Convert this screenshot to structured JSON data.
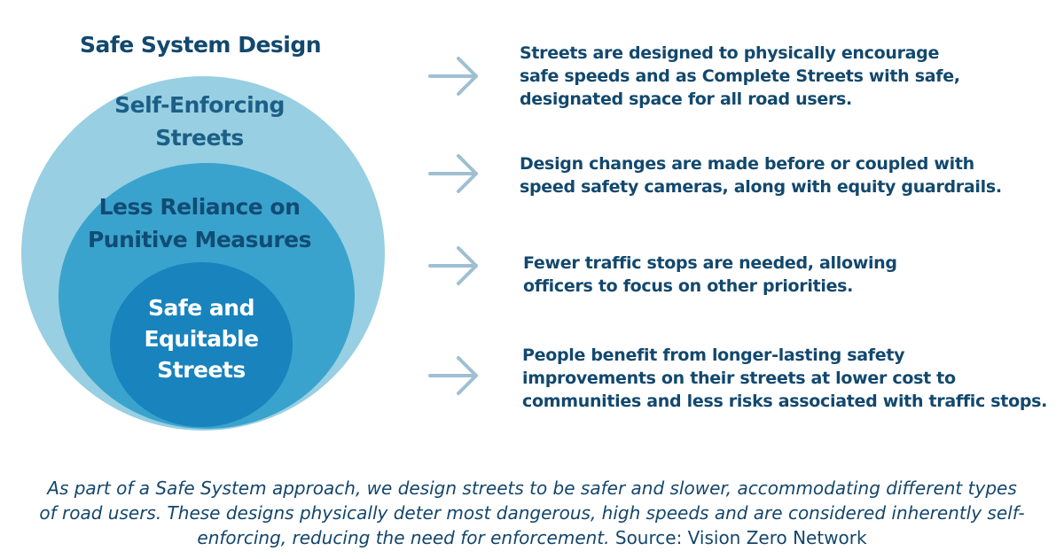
{
  "title": "Safe System Design",
  "circles": {
    "outer": [
      "Self-Enforcing",
      "Streets"
    ],
    "middle": [
      "Less Reliance on",
      "Punitive Measures"
    ],
    "inner": [
      "Safe and",
      "Equitable",
      "Streets"
    ]
  },
  "descriptions": [
    [
      "Streets are designed to physically encourage",
      "safe speeds and as Complete Streets with safe,",
      "designated space for all road users."
    ],
    [
      "Design changes are made before or coupled with",
      "speed safety cameras, along with equity guardrails."
    ],
    [
      "Fewer traffic stops are needed, allowing",
      "officers to focus on other priorities."
    ],
    [
      "People benefit from longer-lasting safety",
      "improvements on their streets at lower cost to",
      "communities and less risks associated with traffic stops."
    ]
  ],
  "caption": {
    "lines": [
      "As part of a Safe System approach, we design streets to be safer and slower, accommodating different types",
      "of road users. These designs physically deter most dangerous, high speeds and are considered inherently self-",
      "enforcing, reducing the need for enforcement."
    ],
    "source": "Source: Vision Zero Network"
  },
  "colors": {
    "outer_circle": "#98cfe2",
    "middle_circle": "#3aa3cd",
    "inner_circle": "#1883bd",
    "text_dark": "#12486e",
    "arrow": "#9fbfd2"
  },
  "icons": [
    "arrow-right-icon"
  ]
}
